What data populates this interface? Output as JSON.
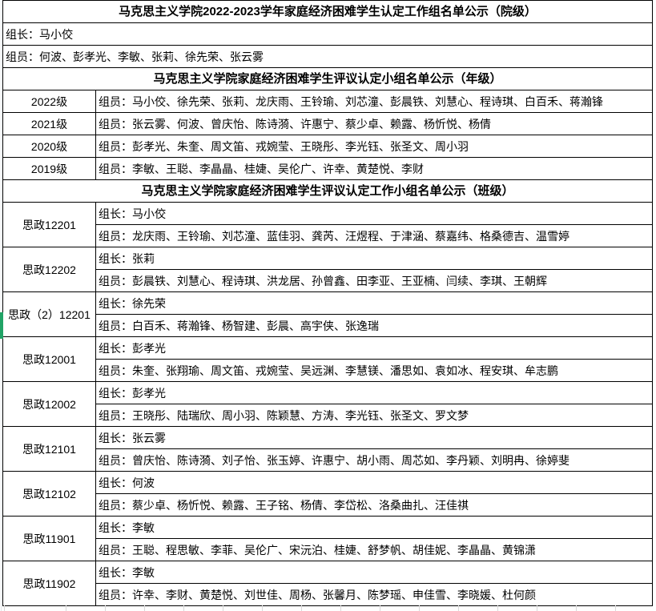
{
  "colors": {
    "border": "#000000",
    "gridline": "#d9d9d9",
    "selection_green": "#21a366",
    "background": "#ffffff"
  },
  "table": {
    "title_college": "马克思主义学院2022-2023学年家庭经济困难学生认定工作组名单公示（院级）",
    "college_leader": "组长：马小佼",
    "college_members": "组员：何波、彭孝光、李敏、张莉、徐先荣、张云雾",
    "title_grade": "马克思主义学院家庭经济困难学生评议认定小组名单公示（年级）",
    "grade_rows": [
      {
        "label": "2022级",
        "members": "组员：马小佼、徐先荣、张莉、龙庆雨、王铃瑜、刘芯潼、彭晨铁、刘慧心、程诗琪、白百禾、蒋瀚锋"
      },
      {
        "label": "2021级",
        "members": "组员：张云雾、何波、曾庆怡、陈诗漪、许惠宁、蔡少卓、赖露、杨忻悦、杨倩"
      },
      {
        "label": "2020级",
        "members": "组员：彭孝光、朱奎、周文笛、戎婉莹、王晓彤、李光钰、张圣文、周小羽"
      },
      {
        "label": "2019级",
        "members": "组员：李敏、王聪、李晶晶、桂婕、吴伦广、许幸、黄楚悦、李财"
      }
    ],
    "title_class": "马克思主义学院家庭经济困难学生评议认定工作小组名单公示（班级）",
    "class_rows": [
      {
        "label": "思政12201",
        "leader": "组长：马小佼",
        "members": "组员：龙庆雨、王铃瑜、刘芯潼、蓝佳羽、龚芮、汪煜程、于津涵、蔡嘉纬、格桑德吉、温雪婷"
      },
      {
        "label": "思政12202",
        "leader": "组长：张莉",
        "members": "组员：彭晨铁、刘慧心、程诗琪、洪龙居、孙曾鑫、田李亚、王亚楠、闫续、李琪、王朝辉"
      },
      {
        "label": "思政（2）12201",
        "leader": "组长：徐先荣",
        "members": "组员：白百禾、蒋瀚锋、杨智建、彭晨、高宇侠、张逸瑞"
      },
      {
        "label": "思政12001",
        "leader": "组长：彭孝光",
        "members": "组员：朱奎、张翔瑜、周文笛、戎婉莹、吴远渊、李慧镁、潘思如、袁如冰、程安琪、牟志鹏"
      },
      {
        "label": "思政12002",
        "leader": "组长：彭孝光",
        "members": "组员：王晓彤、陆瑞欣、周小羽、陈颖慧、方涛、李光钰、张圣文、罗文梦"
      },
      {
        "label": "思政12101",
        "leader": "组长：张云雾",
        "members": "组员：曾庆怡、陈诗漪、刘子怡、张玉婷、许惠宁、胡小雨、周芯如、李丹颖、刘明冉、徐婷斐"
      },
      {
        "label": "思政12102",
        "leader": "组长：何波",
        "members": "组员：蔡少卓、杨忻悦、赖露、王子铭、杨倩、李岱松、洛桑曲扎、汪佳祺"
      },
      {
        "label": "思政11901",
        "leader": "组长：李敏",
        "members": "组员：王聪、程思敏、李菲、吴伦广、宋沅泊、桂婕、舒梦帆、胡佳妮、李晶晶、黄锦潇"
      },
      {
        "label": "思政11902",
        "leader": "组长：李敏",
        "members": "组员：许幸、李财、黄楚悦、刘世佳、周杨、张馨月、陈梦瑶、申佳雪、李晓媛、杜何颜"
      }
    ]
  }
}
